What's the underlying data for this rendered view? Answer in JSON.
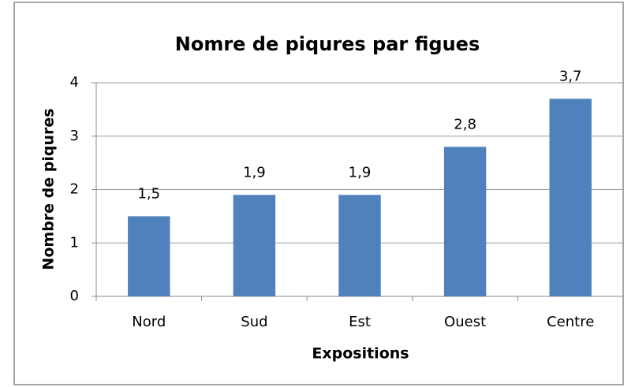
{
  "chart_data": {
    "type": "bar",
    "title": "Nomre de piqures par figues",
    "x_label": "Expositions",
    "y_label": "Nombre de piqures",
    "categories": [
      "Nord",
      "Sud",
      "Est",
      "Ouest",
      "Centre"
    ],
    "values": [
      1.5,
      1.9,
      1.9,
      2.8,
      3.7
    ],
    "value_labels": [
      "1,5",
      "1,9",
      "1,9",
      "2,8",
      "3,7"
    ],
    "color": "#4f81bd",
    "ylim": [
      0,
      4
    ],
    "yticks": [
      0,
      1,
      2,
      3,
      4
    ],
    "grid": true
  }
}
